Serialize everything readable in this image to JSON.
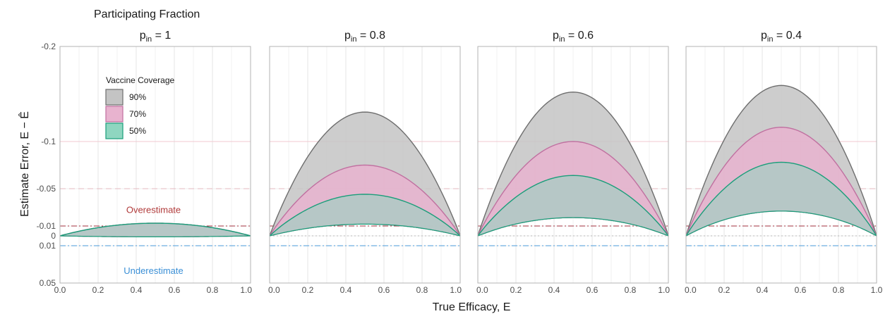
{
  "figure_title": "Participating Fraction",
  "chart_data": {
    "type": "area",
    "xlabel": "True Efficacy, E",
    "ylabel": "Estimate Error, E − Ê",
    "xlim": [
      0,
      1
    ],
    "ylim": [
      -0.2,
      0.05
    ],
    "y_reversed": true,
    "x_ticks": [
      "0.0",
      "0.2",
      "0.4",
      "0.6",
      "0.8",
      "1.0"
    ],
    "y_ticks": [
      {
        "value": -0.2,
        "label": "-0.2"
      },
      {
        "value": -0.1,
        "label": "-0.1"
      },
      {
        "value": -0.05,
        "label": "-0.05"
      },
      {
        "value": -0.01,
        "label": "-0.01"
      },
      {
        "value": 0,
        "label": "0"
      },
      {
        "value": 0.01,
        "label": "0.01"
      },
      {
        "value": 0.05,
        "label": "0.05"
      }
    ],
    "grid": true,
    "legend": {
      "title": "Vaccine Coverage",
      "placement": "top-left of first panel",
      "items": [
        {
          "label": "90%",
          "fill": "#c4c4c4",
          "stroke": "#6e6e6e"
        },
        {
          "label": "70%",
          "fill": "#e8b3cf",
          "stroke": "#c070a0"
        },
        {
          "label": "50%",
          "fill": "#8fd6c0",
          "stroke": "#1a9e7a"
        }
      ]
    },
    "reference_lines": [
      {
        "y": -0.1,
        "style": "solid",
        "color": "#f0c8d0"
      },
      {
        "y": -0.05,
        "style": "dashed",
        "color": "#e3b8bf"
      },
      {
        "y": -0.01,
        "style": "dashdot",
        "color": "#a0303e"
      },
      {
        "y": 0,
        "style": "dotted",
        "color": "#b8b8b8"
      },
      {
        "y": 0.01,
        "style": "dashdot",
        "color": "#4a9ad9"
      }
    ],
    "annotations": [
      {
        "text": "Overestimate",
        "x": 0.35,
        "y": -0.015,
        "color": "#b03a3a"
      },
      {
        "text": "Underestimate",
        "x": 0.35,
        "y": 0.025,
        "color": "#3a8fd6"
      }
    ],
    "panels": [
      {
        "title_base": "p",
        "title_sub": "in",
        "title_value": " = 1",
        "bands": [
          {
            "coverage": "90%",
            "peak": -0.013,
            "lower_peak": 0.001
          },
          {
            "coverage": "70%",
            "peak": -0.013,
            "lower_peak": 0.001
          },
          {
            "coverage": "50%",
            "peak": -0.013,
            "lower_peak": 0.001
          }
        ]
      },
      {
        "title_base": "p",
        "title_sub": "in",
        "title_value": " = 0.8",
        "bands": [
          {
            "coverage": "90%",
            "peak": -0.131,
            "lower_peak": -0.012
          },
          {
            "coverage": "70%",
            "peak": -0.075,
            "lower_peak": -0.012
          },
          {
            "coverage": "50%",
            "peak": -0.044,
            "lower_peak": -0.012
          }
        ]
      },
      {
        "title_base": "p",
        "title_sub": "in",
        "title_value": " = 0.6",
        "bands": [
          {
            "coverage": "90%",
            "peak": -0.152,
            "lower_peak": -0.019
          },
          {
            "coverage": "70%",
            "peak": -0.1,
            "lower_peak": -0.019
          },
          {
            "coverage": "50%",
            "peak": -0.064,
            "lower_peak": -0.019
          }
        ]
      },
      {
        "title_base": "p",
        "title_sub": "in",
        "title_value": " = 0.4",
        "bands": [
          {
            "coverage": "90%",
            "peak": -0.159,
            "lower_peak": -0.026
          },
          {
            "coverage": "70%",
            "peak": -0.115,
            "lower_peak": -0.026
          },
          {
            "coverage": "50%",
            "peak": -0.078,
            "lower_peak": -0.026
          }
        ]
      }
    ]
  }
}
